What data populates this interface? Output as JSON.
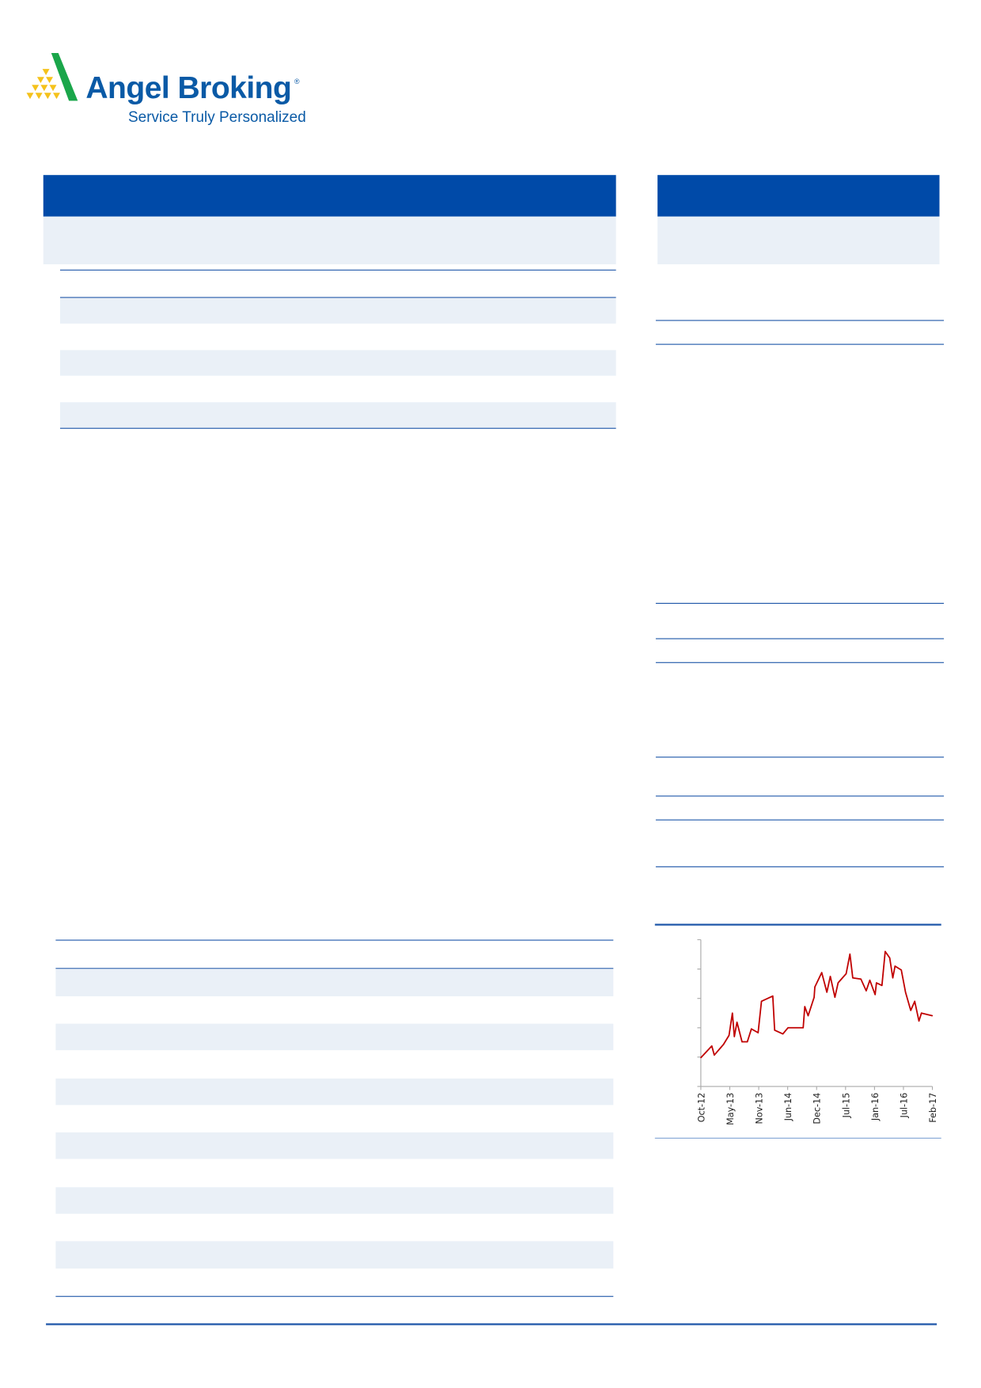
{
  "logo": {
    "name": "Angel Broking",
    "registered": "®",
    "tagline": "Service Truly Personalized"
  },
  "colors": {
    "brand_blue": "#004aa8",
    "band": "#eaf0f7",
    "line": "#c00000",
    "logo_green": "#1aa64a",
    "logo_yellow": "#f5c21b"
  },
  "chart_data": {
    "type": "line",
    "title": "",
    "xlabel": "",
    "ylabel": "",
    "x_tick_labels": [
      "Oct-12",
      "May-13",
      "Nov-13",
      "Jun-14",
      "Dec-14",
      "Jul-15",
      "Jan-16",
      "Jul-16",
      "Feb-17"
    ],
    "y_tick_labels_shown": false,
    "ylim": [
      0,
      5
    ],
    "grid": false,
    "series": [
      {
        "color": "#c00000",
        "points": [
          [
            "2012-10-01",
            0.98
          ],
          [
            "2012-12-15",
            1.38
          ],
          [
            "2013-01-01",
            1.07
          ],
          [
            "2013-03-05",
            1.43
          ],
          [
            "2013-04-12",
            1.74
          ],
          [
            "2013-05-05",
            2.5
          ],
          [
            "2013-05-18",
            1.7
          ],
          [
            "2013-06-05",
            2.19
          ],
          [
            "2013-07-10",
            1.52
          ],
          [
            "2013-08-15",
            1.52
          ],
          [
            "2013-09-12",
            1.96
          ],
          [
            "2013-10-28",
            1.83
          ],
          [
            "2013-11-20",
            2.9
          ],
          [
            "2014-02-05",
            3.08
          ],
          [
            "2014-02-18",
            1.92
          ],
          [
            "2014-04-15",
            1.79
          ],
          [
            "2014-05-20",
            2.0
          ],
          [
            "2014-09-01",
            2.0
          ],
          [
            "2014-09-12",
            2.72
          ],
          [
            "2014-10-05",
            2.41
          ],
          [
            "2014-11-15",
            3.04
          ],
          [
            "2014-11-20",
            3.39
          ],
          [
            "2015-01-06",
            3.88
          ],
          [
            "2015-02-10",
            3.21
          ],
          [
            "2015-03-06",
            3.75
          ],
          [
            "2015-04-06",
            3.04
          ],
          [
            "2015-04-28",
            3.53
          ],
          [
            "2015-06-22",
            3.84
          ],
          [
            "2015-07-18",
            4.51
          ],
          [
            "2015-08-06",
            3.7
          ],
          [
            "2015-10-01",
            3.66
          ],
          [
            "2015-11-06",
            3.26
          ],
          [
            "2015-12-01",
            3.62
          ],
          [
            "2016-01-06",
            3.13
          ],
          [
            "2016-01-15",
            3.53
          ],
          [
            "2016-02-22",
            3.44
          ],
          [
            "2016-03-15",
            4.6
          ],
          [
            "2016-04-15",
            4.38
          ],
          [
            "2016-05-06",
            3.7
          ],
          [
            "2016-05-21",
            4.1
          ],
          [
            "2016-07-03",
            3.97
          ],
          [
            "2016-08-01",
            3.21
          ],
          [
            "2016-09-06",
            2.59
          ],
          [
            "2016-10-03",
            2.9
          ],
          [
            "2016-11-01",
            2.23
          ],
          [
            "2016-11-18",
            2.5
          ],
          [
            "2017-02-01",
            2.41
          ]
        ]
      }
    ]
  }
}
